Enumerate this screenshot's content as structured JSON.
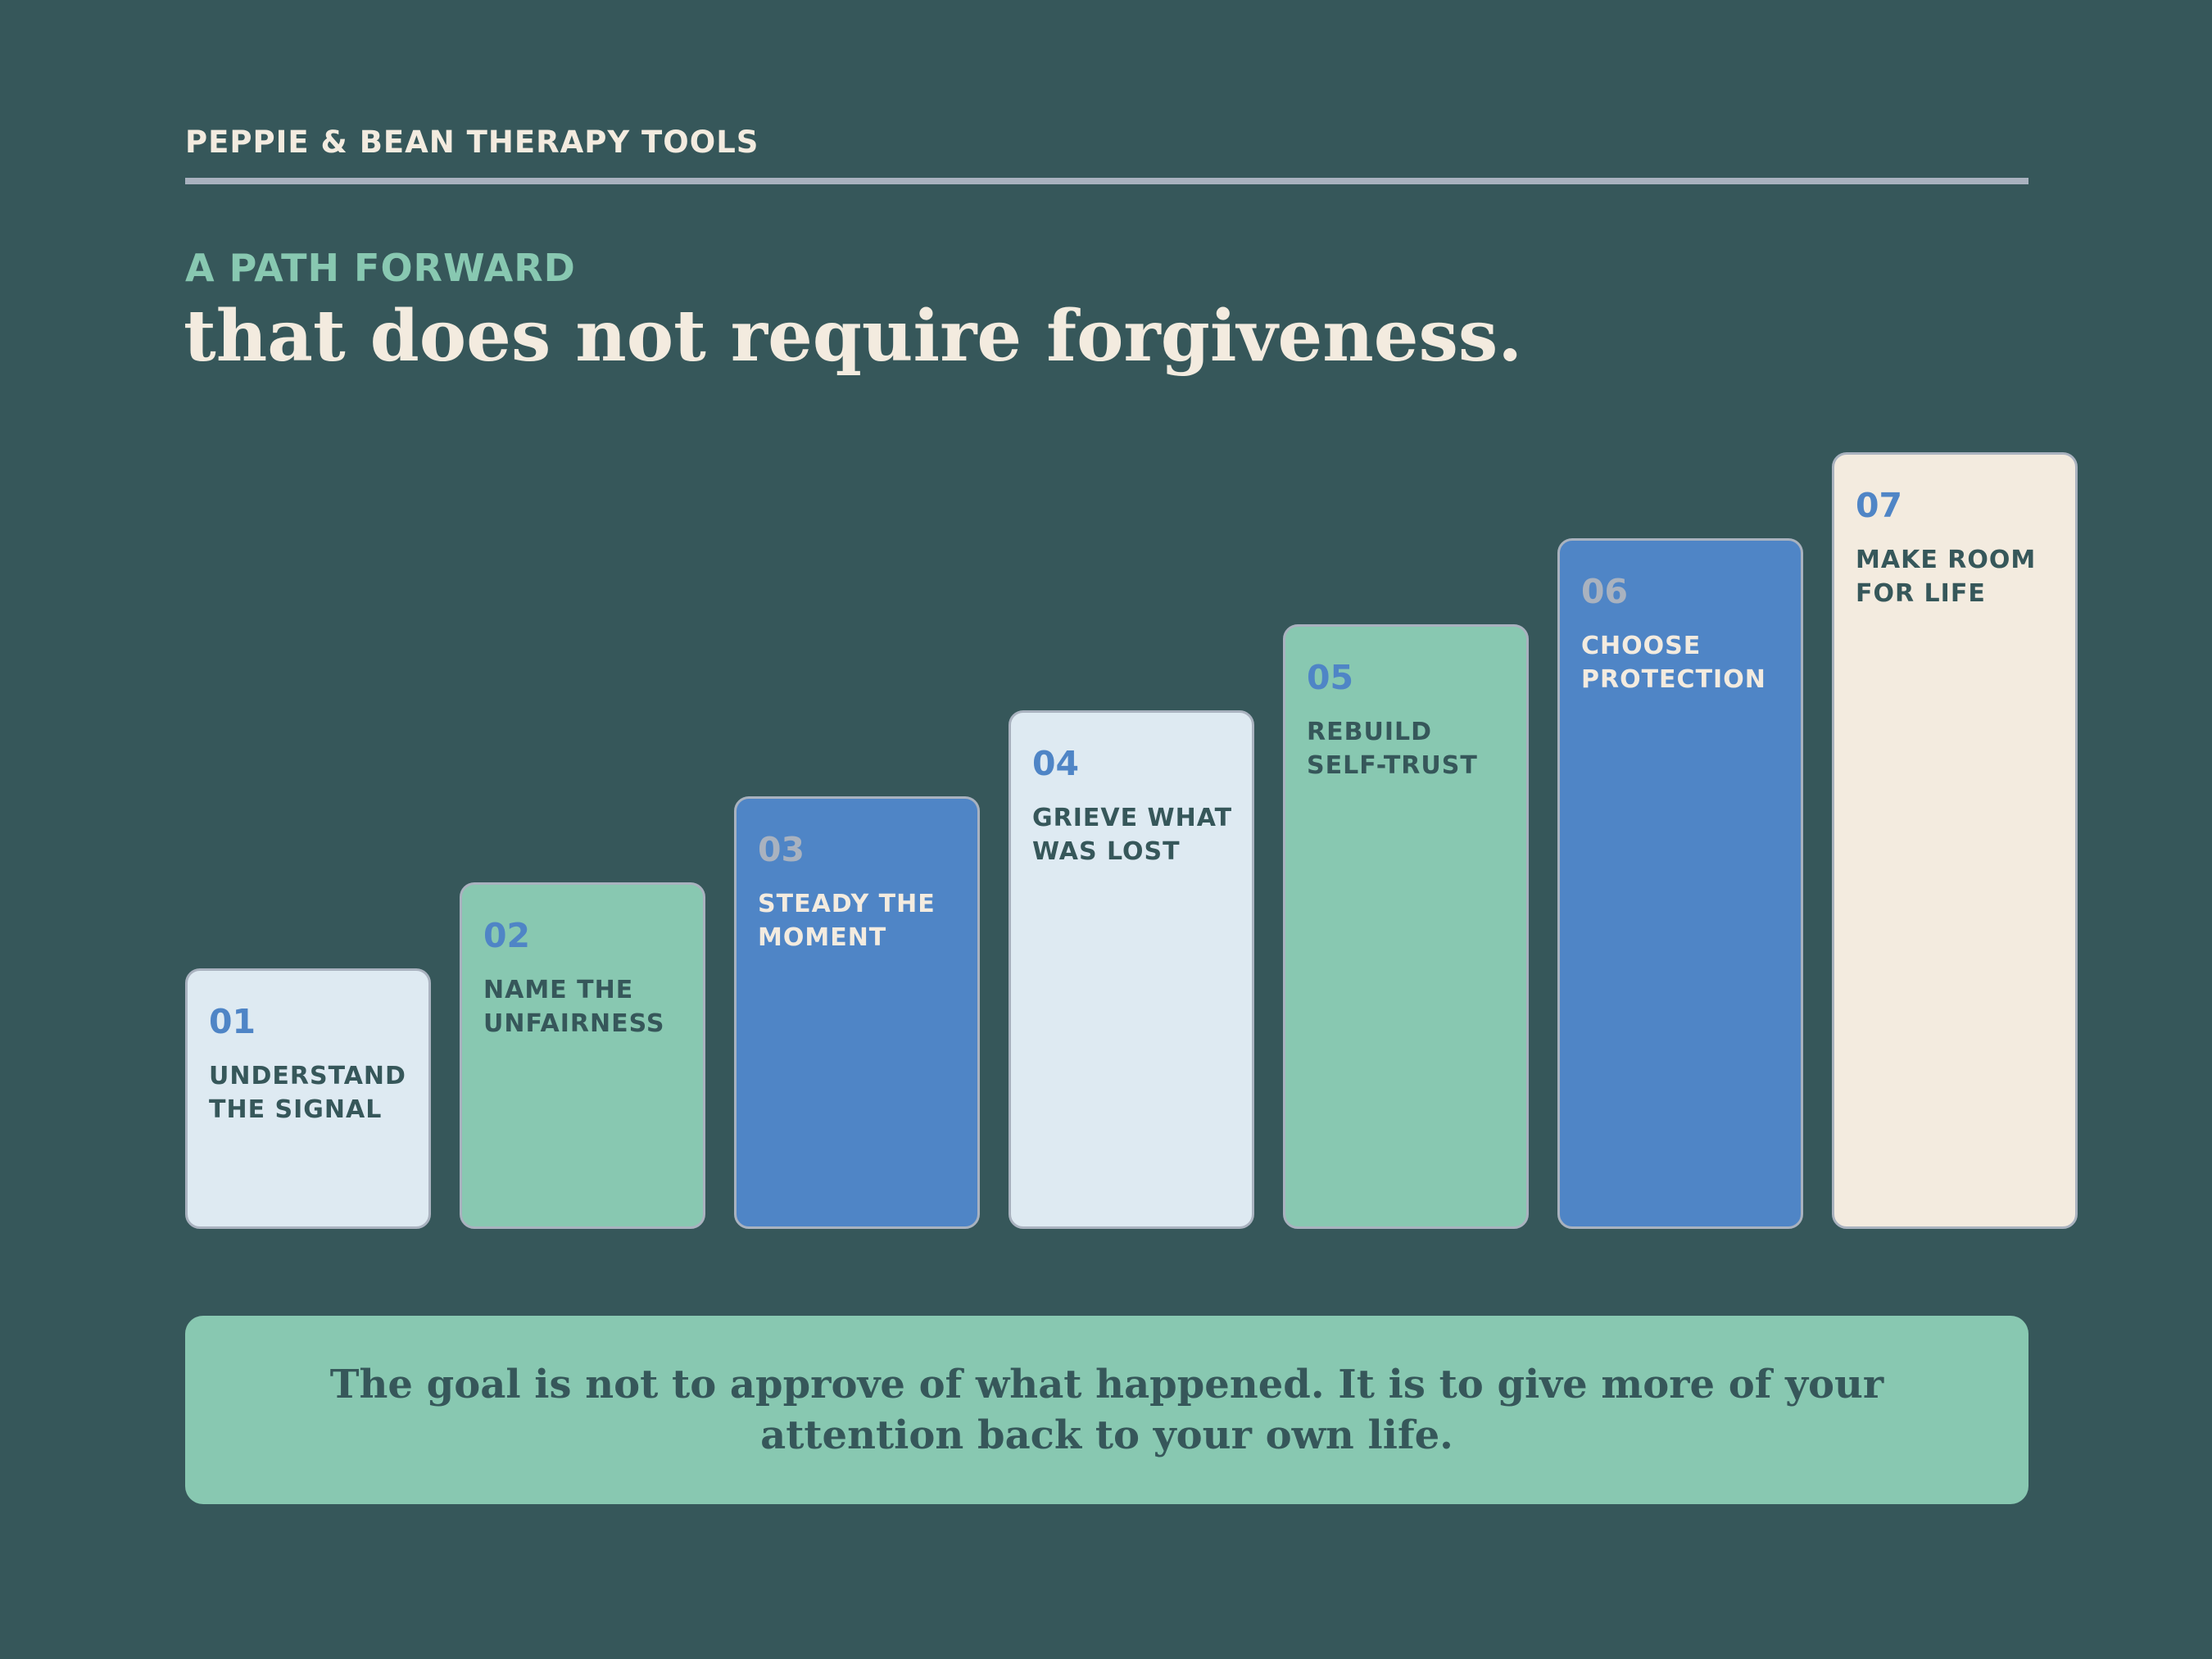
{
  "header": {
    "brand": "PEPPIE & BEAN THERAPY TOOLS"
  },
  "heading": {
    "eyebrow": "A PATH FORWARD",
    "title": "that does not require forgiveness."
  },
  "steps": [
    {
      "number": "01",
      "label": "UNDERSTAND THE SIGNAL",
      "level": 1,
      "style": "light"
    },
    {
      "number": "02",
      "label": "NAME THE UNFAIRNESS",
      "level": 2,
      "style": "mint"
    },
    {
      "number": "03",
      "label": "STEADY THE MOMENT",
      "level": 3,
      "style": "blue"
    },
    {
      "number": "04",
      "label": "GRIEVE WHAT WAS LOST",
      "level": 4,
      "style": "light"
    },
    {
      "number": "05",
      "label": "REBUILD SELF-TRUST",
      "level": 5,
      "style": "mint"
    },
    {
      "number": "06",
      "label": "CHOOSE PROTECTION",
      "level": 6,
      "style": "blue"
    },
    {
      "number": "07",
      "label": "MAKE ROOM FOR LIFE",
      "level": 7,
      "style": "cream"
    }
  ],
  "callout": {
    "text": "The goal is not to approve of what happened. It is to give more of your attention back to your own life."
  },
  "colors": {
    "background": "#36575a",
    "light": "#deeaf2",
    "mint": "#88c8b1",
    "blue": "#4f85c6",
    "cream": "#f3ebdf",
    "border": "#a9b2bf",
    "dark_text": "#36575a",
    "light_text": "#f3ebdf",
    "blue_number": "#4f85c6",
    "muted_number": "#a9b2bf"
  }
}
